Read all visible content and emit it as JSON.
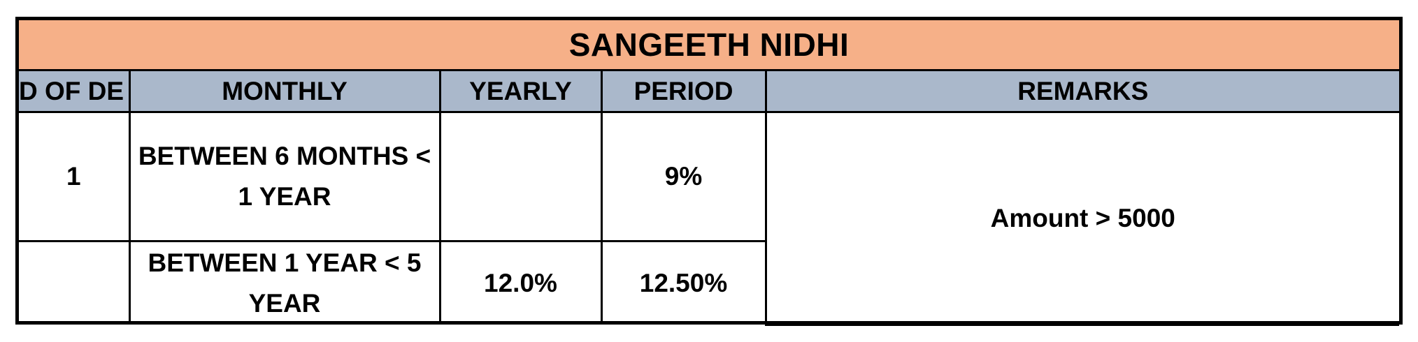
{
  "colors": {
    "title_bg": "#f6b088",
    "header_bg": "#aab8cb",
    "border": "#000000",
    "text": "#000000"
  },
  "title": "SANGEETH NIDHI",
  "headers": {
    "col1": "D OF DE",
    "col2": "MONTHLY",
    "col3": "YEARLY",
    "col4": "PERIOD",
    "col5": "REMARKS"
  },
  "rows": [
    {
      "col1": "1",
      "col2": "BETWEEN 6 MONTHS < 1 YEAR",
      "col3": "",
      "col4": "9%"
    },
    {
      "col1": "",
      "col2": "BETWEEN 1 YEAR < 5 YEAR",
      "col3": "12.0%",
      "col4": "12.50%"
    }
  ],
  "remarks": "Amount >  5000"
}
